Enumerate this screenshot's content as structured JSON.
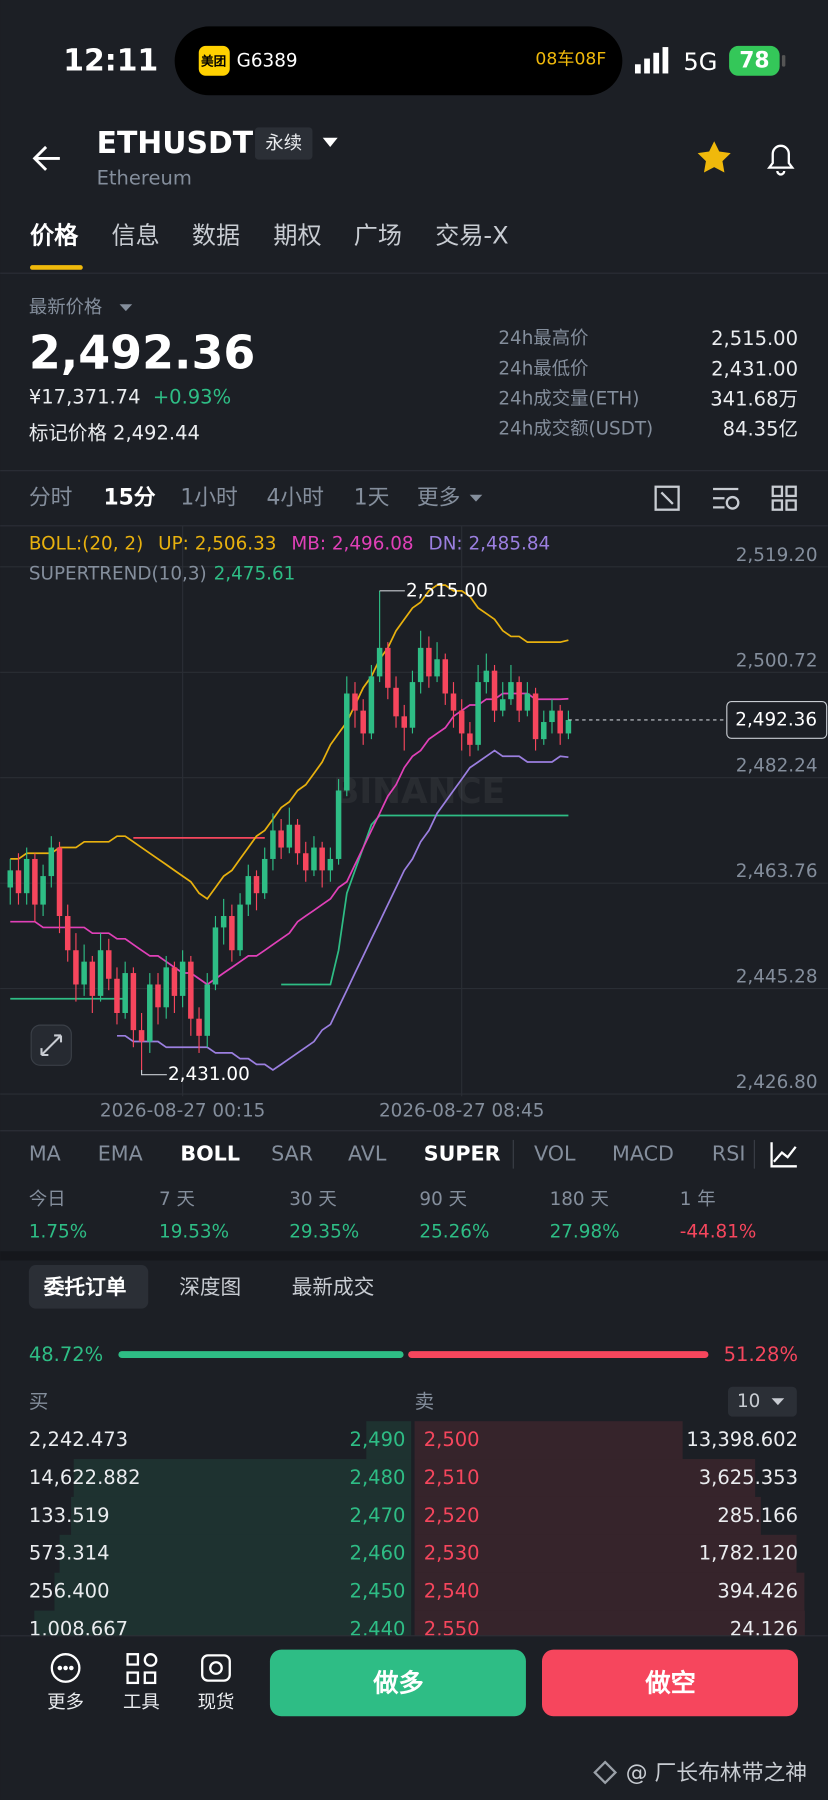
{
  "status_bar": {
    "time": "12:11",
    "island_app": "美团",
    "island_text": "G6389",
    "island_info": "08车08F",
    "network": "5G",
    "battery": "78"
  },
  "header": {
    "symbol": "ETHUSDT",
    "contract": "永续",
    "name": "Ethereum"
  },
  "tabs": [
    "价格",
    "信息",
    "数据",
    "期权",
    "广场",
    "交易-X"
  ],
  "price_panel": {
    "label": "最新价格",
    "last": "2,492.36",
    "cny": "¥17,371.74",
    "change": "+0.93%",
    "mark": "标记价格 2,492.44",
    "stats": [
      [
        "24h最高价",
        "2,515.00"
      ],
      [
        "24h最低价",
        "2,431.00"
      ],
      [
        "24h成交量(ETH)",
        "341.68万"
      ],
      [
        "24h成交额(USDT)",
        "84.35亿"
      ]
    ]
  },
  "intervals": [
    "分时",
    "15分",
    "1小时",
    "4小时",
    "1天",
    "更多"
  ],
  "chart_data": {
    "type": "candlestick",
    "categories": [
      null,
      null,
      null,
      null,
      null,
      null,
      null,
      null,
      null,
      null,
      null,
      null,
      null,
      null,
      null,
      null,
      null,
      null,
      null,
      null,
      null,
      "2026-08-27 00:15",
      null,
      null,
      null,
      null,
      null,
      null,
      null,
      null,
      null,
      null,
      null,
      null,
      null,
      null,
      null,
      null,
      null,
      null,
      null,
      null,
      null,
      null,
      null,
      null,
      null,
      null,
      null,
      null,
      null,
      null,
      null,
      null,
      null,
      "2026-08-27 08:45",
      null,
      null,
      null,
      null,
      null,
      null,
      null,
      null,
      null,
      null,
      null,
      null,
      null
    ],
    "ohlc": [
      [
        2463,
        2468,
        2460,
        2466
      ],
      [
        2466,
        2469,
        2460,
        2462
      ],
      [
        2462,
        2470,
        2460,
        2468
      ],
      [
        2468,
        2469,
        2457,
        2460
      ],
      [
        2460,
        2467,
        2458,
        2465
      ],
      [
        2465,
        2472,
        2463,
        2470
      ],
      [
        2470,
        2471,
        2455,
        2458
      ],
      [
        2458,
        2460,
        2450,
        2452
      ],
      [
        2452,
        2455,
        2443,
        2446
      ],
      [
        2446,
        2453,
        2444,
        2450
      ],
      [
        2450,
        2451,
        2441,
        2444
      ],
      [
        2444,
        2455,
        2443,
        2452
      ],
      [
        2452,
        2454,
        2445,
        2447
      ],
      [
        2447,
        2449,
        2439,
        2441
      ],
      [
        2441,
        2450,
        2440,
        2448
      ],
      [
        2448,
        2449,
        2435,
        2438
      ],
      [
        2438,
        2441,
        2431,
        2436
      ],
      [
        2436,
        2448,
        2434,
        2446
      ],
      [
        2446,
        2448,
        2439,
        2442
      ],
      [
        2442,
        2451,
        2440,
        2449
      ],
      [
        2449,
        2450,
        2441,
        2444
      ],
      [
        2444,
        2452,
        2442,
        2450
      ],
      [
        2450,
        2451,
        2437,
        2440
      ],
      [
        2440,
        2442,
        2434,
        2437
      ],
      [
        2437,
        2448,
        2435,
        2446
      ],
      [
        2446,
        2458,
        2445,
        2456
      ],
      [
        2456,
        2461,
        2453,
        2458
      ],
      [
        2458,
        2460,
        2450,
        2452
      ],
      [
        2452,
        2462,
        2451,
        2460
      ],
      [
        2460,
        2467,
        2458,
        2465
      ],
      [
        2465,
        2466,
        2459,
        2462
      ],
      [
        2462,
        2470,
        2461,
        2468
      ],
      [
        2468,
        2476,
        2466,
        2473
      ],
      [
        2473,
        2475,
        2468,
        2470
      ],
      [
        2470,
        2477,
        2469,
        2474
      ],
      [
        2474,
        2475,
        2467,
        2469
      ],
      [
        2469,
        2471,
        2464,
        2466
      ],
      [
        2466,
        2472,
        2465,
        2470
      ],
      [
        2470,
        2471,
        2463,
        2466
      ],
      [
        2466,
        2470,
        2464,
        2468
      ],
      [
        2468,
        2482,
        2467,
        2480
      ],
      [
        2480,
        2500,
        2479,
        2497
      ],
      [
        2497,
        2499,
        2491,
        2494
      ],
      [
        2494,
        2496,
        2488,
        2490
      ],
      [
        2490,
        2502,
        2489,
        2500
      ],
      [
        2500,
        2515,
        2499,
        2505
      ],
      [
        2505,
        2506,
        2496,
        2498
      ],
      [
        2498,
        2500,
        2491,
        2493
      ],
      [
        2493,
        2495,
        2487,
        2491
      ],
      [
        2491,
        2501,
        2490,
        2499
      ],
      [
        2499,
        2508,
        2497,
        2505
      ],
      [
        2505,
        2507,
        2498,
        2500
      ],
      [
        2500,
        2506,
        2499,
        2503
      ],
      [
        2503,
        2504,
        2495,
        2497
      ],
      [
        2497,
        2499,
        2491,
        2494
      ],
      [
        2494,
        2496,
        2487,
        2490
      ],
      [
        2490,
        2492,
        2486,
        2488
      ],
      [
        2488,
        2502,
        2487,
        2499
      ],
      [
        2499,
        2504,
        2497,
        2501
      ],
      [
        2501,
        2502,
        2492,
        2494
      ],
      [
        2494,
        2499,
        2493,
        2496
      ],
      [
        2496,
        2502,
        2495,
        2499
      ],
      [
        2499,
        2500,
        2492,
        2494
      ],
      [
        2494,
        2499,
        2493,
        2497
      ],
      [
        2497,
        2498,
        2487,
        2489
      ],
      [
        2489,
        2494,
        2488,
        2492
      ],
      [
        2492,
        2496,
        2490,
        2494
      ],
      [
        2494,
        2495,
        2488,
        2490
      ],
      [
        2490,
        2494,
        2489,
        2492.36
      ]
    ],
    "up_color": "#2ebd85",
    "down_color": "#f6465d",
    "ylim": [
      2426.4,
      2526.4
    ],
    "yticks": [
      {
        "value": 2519.2,
        "label": "2,519.20"
      },
      {
        "value": 2500.72,
        "label": "2,500.72"
      },
      {
        "value": 2482.24,
        "label": "2,482.24"
      },
      {
        "value": 2463.76,
        "label": "2,463.76"
      },
      {
        "value": 2445.28,
        "label": "2,445.28"
      },
      {
        "value": 2426.8,
        "label": "2,426.80"
      }
    ],
    "grid": true,
    "indicator_label": "BOLL:(20, 2)",
    "series": [
      {
        "name": "UP: 2,506.33",
        "color": "#e8b10e",
        "values": [
          2468,
          2468,
          2469,
          2469,
          2469,
          2469,
          2470,
          2470,
          2470,
          2471,
          2471,
          2471,
          2471,
          2472,
          2472,
          2471,
          2470,
          2469,
          2468,
          2467,
          2466,
          2465,
          2464,
          2462,
          2461,
          2463,
          2465,
          2466,
          2468,
          2470,
          2472,
          2473,
          2475,
          2477,
          2478,
          2480,
          2481,
          2483,
          2485,
          2488,
          2490,
          2492,
          2495,
          2498,
          2500,
          2503,
          2505,
          2508,
          2510,
          2512,
          2513,
          2515,
          2516,
          2516,
          2515,
          2515,
          2514,
          2512,
          2511,
          2510,
          2508,
          2507,
          2507,
          2506,
          2506,
          2506,
          2506,
          2506,
          2506.33
        ]
      },
      {
        "name": "MB: 2,496.08",
        "color": "#e040b8",
        "values": [
          2457,
          2457,
          2457,
          2457,
          2456,
          2456,
          2456,
          2456,
          2456,
          2456,
          2455,
          2455,
          2455,
          2454,
          2454,
          2453,
          2452,
          2451,
          2451,
          2450,
          2449,
          2448,
          2448,
          2447,
          2446,
          2447,
          2448,
          2449,
          2450,
          2451,
          2451,
          2452,
          2453,
          2454,
          2455,
          2457,
          2458,
          2459,
          2460,
          2461,
          2463,
          2464,
          2467,
          2470,
          2473,
          2476,
          2479,
          2481,
          2484,
          2486,
          2487,
          2489,
          2490,
          2491,
          2493,
          2494,
          2495,
          2495,
          2496,
          2496,
          2497,
          2497,
          2497,
          2497,
          2496,
          2496,
          2496,
          2496,
          2496.08
        ]
      },
      {
        "name": "DN: 2,485.84",
        "color": "#9b7fe0",
        "values": [
          null,
          null,
          null,
          null,
          null,
          null,
          null,
          null,
          null,
          null,
          null,
          null,
          null,
          2437,
          2437,
          2436,
          2436,
          2436,
          2436,
          2435,
          2435,
          2435,
          2435,
          2435,
          2435,
          2434,
          2434,
          2434,
          2433,
          2433,
          2432,
          2432,
          2431,
          2432,
          2433,
          2434,
          2435,
          2436,
          2438,
          2439,
          2442,
          2445,
          2448,
          2451,
          2454,
          2457,
          2460,
          2463,
          2466,
          2468,
          2471,
          2473,
          2476,
          2478,
          2480,
          2482,
          2484,
          2485,
          2486,
          2487,
          2486,
          2486,
          2486,
          2485,
          2485,
          2485,
          2485,
          2486,
          2485.84
        ]
      }
    ],
    "supertrend": {
      "label": "SUPERTREND(10,3)",
      "value_label": "2,475.61",
      "up_color": "#2ebd85",
      "down_color": "#f6465d",
      "up": [
        2443.5,
        2443.5,
        2443.5,
        2443.5,
        2443.5,
        2443.5,
        2443.5,
        2443.5,
        2443.5,
        2443.5,
        2443.5,
        2443.5,
        2443.5,
        2443.5,
        2443.5,
        null,
        null,
        null,
        null,
        null,
        null,
        null,
        null,
        null,
        null,
        null,
        null,
        null,
        null,
        null,
        null,
        null,
        null,
        2446,
        2446,
        2446,
        2446,
        2446,
        2446,
        2446,
        2452,
        2462,
        2466,
        2470,
        2474,
        2475.61,
        2475.61,
        2475.61,
        2475.61,
        2475.61,
        2475.61,
        2475.61,
        2475.61,
        2475.61,
        2475.61,
        2475.61,
        2475.61,
        2475.61,
        2475.61,
        2475.61,
        2475.61,
        2475.61,
        2475.61,
        2475.61,
        2475.61,
        2475.61,
        2475.61,
        2475.61,
        2475.61
      ],
      "down": [
        null,
        null,
        null,
        null,
        null,
        null,
        null,
        null,
        null,
        null,
        null,
        null,
        null,
        null,
        null,
        2471.7,
        2471.7,
        2471.7,
        2471.7,
        2471.7,
        2471.7,
        2471.7,
        2471.7,
        2471.7,
        2471.7,
        2471.7,
        2471.7,
        2471.7,
        2471.7,
        2471.7,
        2471.7,
        2471.7,
        null,
        null,
        null,
        null,
        null,
        null,
        null,
        null,
        null,
        null,
        null,
        null,
        null,
        null,
        null,
        null,
        null,
        null,
        null,
        null,
        null,
        null,
        null,
        null,
        null,
        null,
        null,
        null,
        null,
        null,
        null,
        null,
        null,
        null,
        null,
        null,
        null
      ]
    },
    "annotations": [
      {
        "value": 2515,
        "label": "2,515.00"
      },
      {
        "value": 2431,
        "label": "2,431.00"
      }
    ],
    "last_price": {
      "value": 2492.36,
      "label": "2,492.36"
    },
    "watermark": "BINANCE"
  },
  "indicator_tabs": [
    "MA",
    "EMA",
    "BOLL",
    "SAR",
    "AVL",
    "SUPER",
    "VOL",
    "MACD",
    "RSI"
  ],
  "performance": [
    [
      "今日",
      "1.75%"
    ],
    [
      "7 天",
      "19.53%"
    ],
    [
      "30 天",
      "29.35%"
    ],
    [
      "90 天",
      "25.26%"
    ],
    [
      "180 天",
      "27.98%"
    ],
    [
      "1 年",
      "-44.81%"
    ]
  ],
  "order_tabs": [
    "委托订单",
    "深度图",
    "最新成交"
  ],
  "ratio": {
    "buy": {
      "value": 48.72,
      "label": "48.72%"
    },
    "sell": {
      "value": 51.28,
      "label": "51.28%"
    }
  },
  "book": {
    "buy_label": "买",
    "sell_label": "卖",
    "depth": "10",
    "rows": [
      {
        "buy_amount": {
          "value": 2242.473,
          "label": "2,242.473"
        },
        "buy_price": "2,490",
        "sell_price": "2,500",
        "sell_amount": {
          "value": 13398.602,
          "label": "13,398.602"
        }
      },
      {
        "buy_amount": {
          "value": 14622.882,
          "label": "14,622.882"
        },
        "buy_price": "2,480",
        "sell_price": "2,510",
        "sell_amount": {
          "value": 3625.353,
          "label": "3,625.353"
        }
      },
      {
        "buy_amount": {
          "value": 133.519,
          "label": "133.519"
        },
        "buy_price": "2,470",
        "sell_price": "2,520",
        "sell_amount": {
          "value": 285.166,
          "label": "285.166"
        }
      },
      {
        "buy_amount": {
          "value": 573.314,
          "label": "573.314"
        },
        "buy_price": "2,460",
        "sell_price": "2,530",
        "sell_amount": {
          "value": 1782.12,
          "label": "1,782.120"
        }
      },
      {
        "buy_amount": {
          "value": 256.4,
          "label": "256.400"
        },
        "buy_price": "2,450",
        "sell_price": "2,540",
        "sell_amount": {
          "value": 394.426,
          "label": "394.426"
        }
      },
      {
        "buy_amount": {
          "value": 1008.667,
          "label": "1,008.667"
        },
        "buy_price": "2,440",
        "sell_price": "2,550",
        "sell_amount": {
          "value": 24.126,
          "label": "24.126"
        }
      }
    ]
  },
  "bottom_bar": {
    "tools": [
      "更多",
      "工具",
      "现货"
    ],
    "long": "做多",
    "short": "做空"
  },
  "watermark": "@ 厂长布林带之神"
}
